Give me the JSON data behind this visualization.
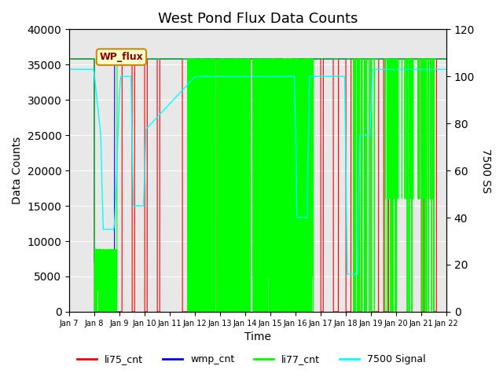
{
  "title": "West Pond Flux Data Counts",
  "xlabel": "Time",
  "ylabel_left": "Data Counts",
  "ylabel_right": "7500 SS",
  "ylim_left": [
    0,
    40000
  ],
  "ylim_right": [
    0,
    120
  ],
  "legend_label": "WP_flux",
  "series_labels": [
    "li75_cnt",
    "wmp_cnt",
    "li77_cnt",
    "7500 Signal"
  ],
  "series_colors": [
    "red",
    "blue",
    "lime",
    "cyan"
  ],
  "background_color": "#e8e8e8",
  "title_fontsize": 13,
  "tick_labels": [
    "Jan 7",
    "Jan 8",
    "Jan 9",
    "Jan 10",
    "Jan 11",
    "Jan 12",
    "Jan 13",
    "Jan 14",
    "Jan 15",
    "Jan 16",
    "Jan 17",
    "Jan 18",
    "Jan 19",
    "Jan 20",
    "Jan 21",
    "Jan 22"
  ]
}
